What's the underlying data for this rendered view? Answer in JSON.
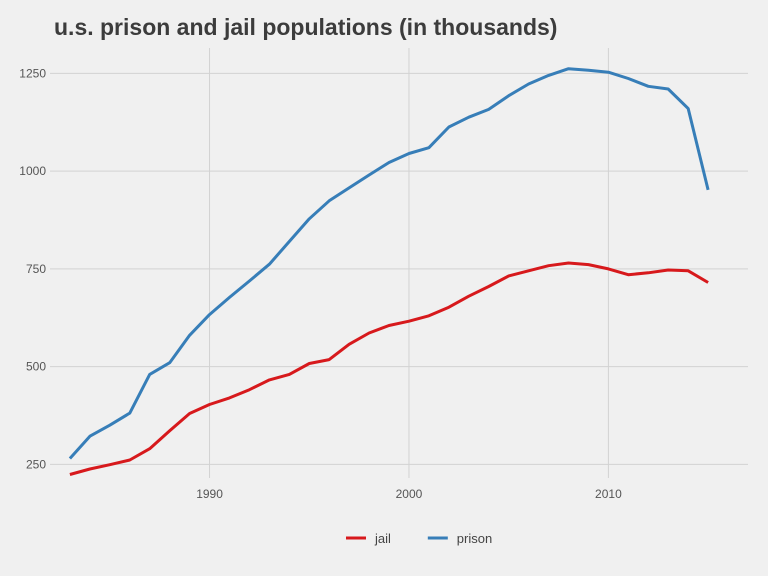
{
  "chart_data": {
    "type": "line",
    "title": "u.s. prison and jail populations (in thousands)",
    "xlabel": "",
    "ylabel": "",
    "xlim": [
      1982,
      2017
    ],
    "ylim": [
      215,
      1315
    ],
    "x_ticks": [
      1990,
      2000,
      2010
    ],
    "y_ticks": [
      250,
      500,
      750,
      1000,
      1250
    ],
    "grid": true,
    "legend_position": "bottom",
    "x": [
      1983,
      1984,
      1985,
      1986,
      1987,
      1988,
      1989,
      1990,
      1991,
      1992,
      1993,
      1994,
      1995,
      1996,
      1997,
      1998,
      1999,
      2000,
      2001,
      2002,
      2003,
      2004,
      2005,
      2006,
      2007,
      2008,
      2009,
      2010,
      2011,
      2012,
      2013,
      2014,
      2015
    ],
    "series": [
      {
        "name": "jail",
        "color": "#d7191c",
        "values": [
          224,
          238,
          249,
          261,
          290,
          336,
          380,
          403,
          420,
          441,
          466,
          480,
          508,
          518,
          557,
          586,
          605,
          616,
          630,
          652,
          680,
          705,
          732,
          745,
          758,
          765,
          761,
          750,
          735,
          740,
          747,
          745,
          715
        ]
      },
      {
        "name": "prison",
        "color": "#377eb8",
        "values": [
          265,
          322,
          350,
          381,
          480,
          510,
          580,
          633,
          677,
          719,
          762,
          820,
          878,
          924,
          957,
          990,
          1022,
          1045,
          1060,
          1113,
          1138,
          1158,
          1193,
          1223,
          1245,
          1262,
          1258,
          1253,
          1237,
          1217,
          1210,
          1160,
          952
        ]
      }
    ]
  }
}
